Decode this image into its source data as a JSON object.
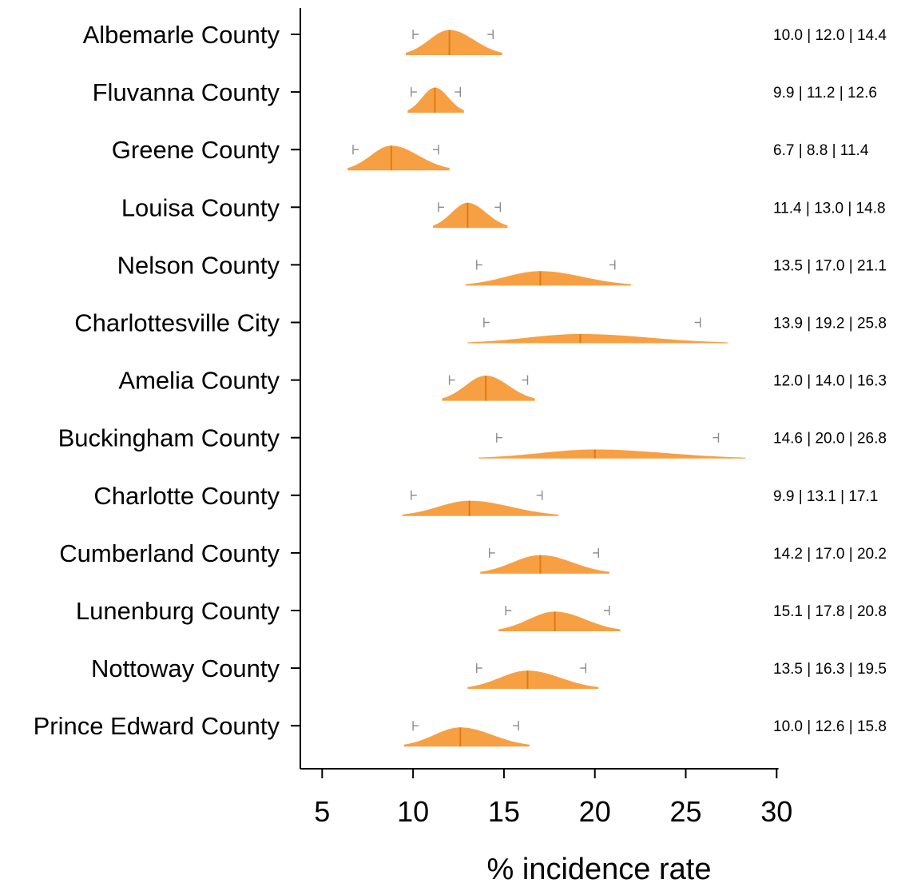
{
  "chart_data": {
    "type": "violin",
    "xlabel": "% incidence rate",
    "ylabel": "",
    "title": "",
    "xlim": [
      3.8,
      37.5
    ],
    "xticks": [
      5,
      10,
      15,
      20,
      25,
      30
    ],
    "tick_labels": [
      "5",
      "10",
      "15",
      "20",
      "25",
      "30"
    ],
    "grid": false,
    "fill_color": "#f7a043",
    "median_color": "#e07a12",
    "ci_color": "#8a8a8a",
    "categories": [
      "Albemarle County",
      "Fluvanna County",
      "Greene County",
      "Louisa County",
      "Nelson County",
      "Charlottesville City",
      "Amelia County",
      "Buckingham County",
      "Charlotte County",
      "Cumberland County",
      "Lunenburg County",
      "Nottoway County",
      "Prince Edward County"
    ],
    "series": [
      {
        "lower": 10.0,
        "median": 12.0,
        "upper": 14.4,
        "min": 9.6,
        "max": 14.9,
        "annotation": "10.0 | 12.0 | 14.4"
      },
      {
        "lower": 9.9,
        "median": 11.2,
        "upper": 12.6,
        "min": 9.7,
        "max": 12.8,
        "annotation": "9.9 | 11.2 | 12.6"
      },
      {
        "lower": 6.7,
        "median": 8.8,
        "upper": 11.4,
        "min": 6.4,
        "max": 12.0,
        "annotation": "6.7 | 8.8 | 11.4"
      },
      {
        "lower": 11.4,
        "median": 13.0,
        "upper": 14.8,
        "min": 11.1,
        "max": 15.2,
        "annotation": "11.4 | 13.0 | 14.8"
      },
      {
        "lower": 13.5,
        "median": 17.0,
        "upper": 21.1,
        "min": 12.9,
        "max": 22.0,
        "annotation": "13.5 | 17.0 | 21.1"
      },
      {
        "lower": 13.9,
        "median": 19.2,
        "upper": 25.8,
        "min": 13.0,
        "max": 27.3,
        "annotation": "13.9 | 19.2 | 25.8"
      },
      {
        "lower": 12.0,
        "median": 14.0,
        "upper": 16.3,
        "min": 11.6,
        "max": 16.7,
        "annotation": "12.0 | 14.0 | 16.3"
      },
      {
        "lower": 14.6,
        "median": 20.0,
        "upper": 26.8,
        "min": 13.6,
        "max": 28.3,
        "annotation": "14.6 | 20.0 | 26.8"
      },
      {
        "lower": 9.9,
        "median": 13.1,
        "upper": 17.1,
        "min": 9.4,
        "max": 18.0,
        "annotation": "9.9 | 13.1 | 17.1"
      },
      {
        "lower": 14.2,
        "median": 17.0,
        "upper": 20.2,
        "min": 13.7,
        "max": 20.8,
        "annotation": "14.2 | 17.0 | 20.2"
      },
      {
        "lower": 15.1,
        "median": 17.8,
        "upper": 20.8,
        "min": 14.7,
        "max": 21.4,
        "annotation": "15.1 | 17.8 | 20.8"
      },
      {
        "lower": 13.5,
        "median": 16.3,
        "upper": 19.5,
        "min": 13.0,
        "max": 20.2,
        "annotation": "13.5 | 16.3 | 19.5"
      },
      {
        "lower": 10.0,
        "median": 12.6,
        "upper": 15.8,
        "min": 9.5,
        "max": 16.4,
        "annotation": "10.0 | 12.6 | 15.8"
      }
    ]
  }
}
